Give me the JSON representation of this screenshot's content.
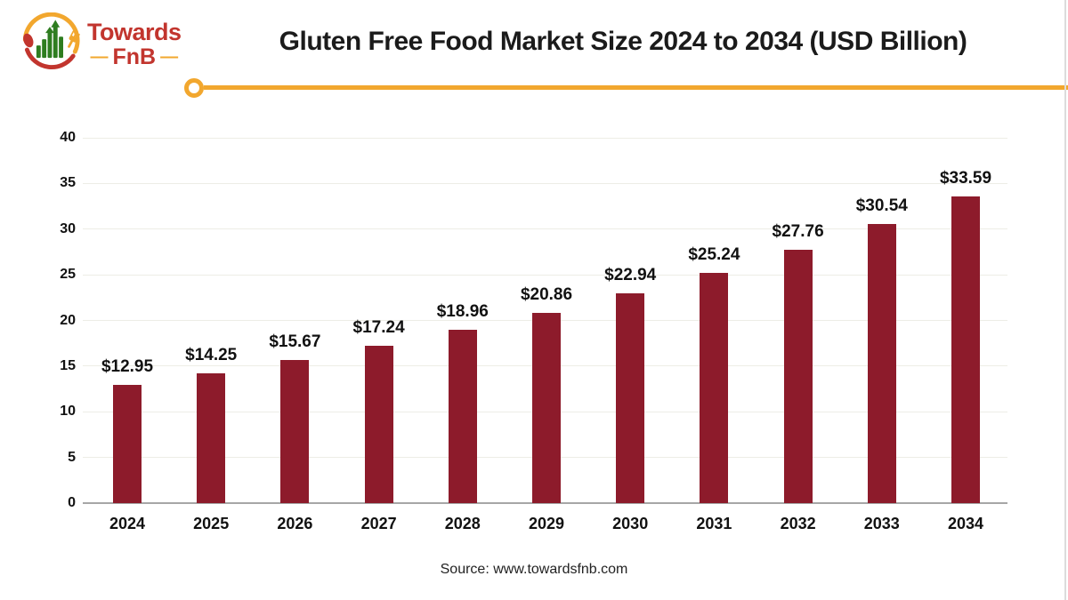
{
  "logo": {
    "brand_top": "Towards",
    "brand_bottom": "FnB",
    "dash": "—"
  },
  "footer": {
    "source": "Source: www.towardsfnb.com"
  },
  "colors": {
    "bar": "#8d1b2b",
    "accent_yellow": "#f2a72e",
    "logo_red": "#c2352e",
    "logo_green": "#2e7d20",
    "gridline": "#edede6",
    "axis": "#a6a6a6"
  },
  "chart_data": {
    "type": "bar",
    "title": "Gluten Free Food Market Size 2024 to 2034 (USD Billion)",
    "categories": [
      "2024",
      "2025",
      "2026",
      "2027",
      "2028",
      "2029",
      "2030",
      "2031",
      "2032",
      "2033",
      "2034"
    ],
    "values": [
      12.95,
      14.25,
      15.67,
      17.24,
      18.96,
      20.86,
      22.94,
      25.24,
      27.76,
      30.54,
      33.59
    ],
    "value_labels": [
      "$12.95",
      "$14.25",
      "$15.67",
      "$17.24",
      "$18.96",
      "$20.86",
      "$22.94",
      "$25.24",
      "$27.76",
      "$30.54",
      "$33.59"
    ],
    "xlabel": "",
    "ylabel": "",
    "ylim": [
      0,
      40
    ],
    "ytick_step": 5,
    "grid": true,
    "legend": false,
    "bar_color": "#8d1b2b"
  }
}
